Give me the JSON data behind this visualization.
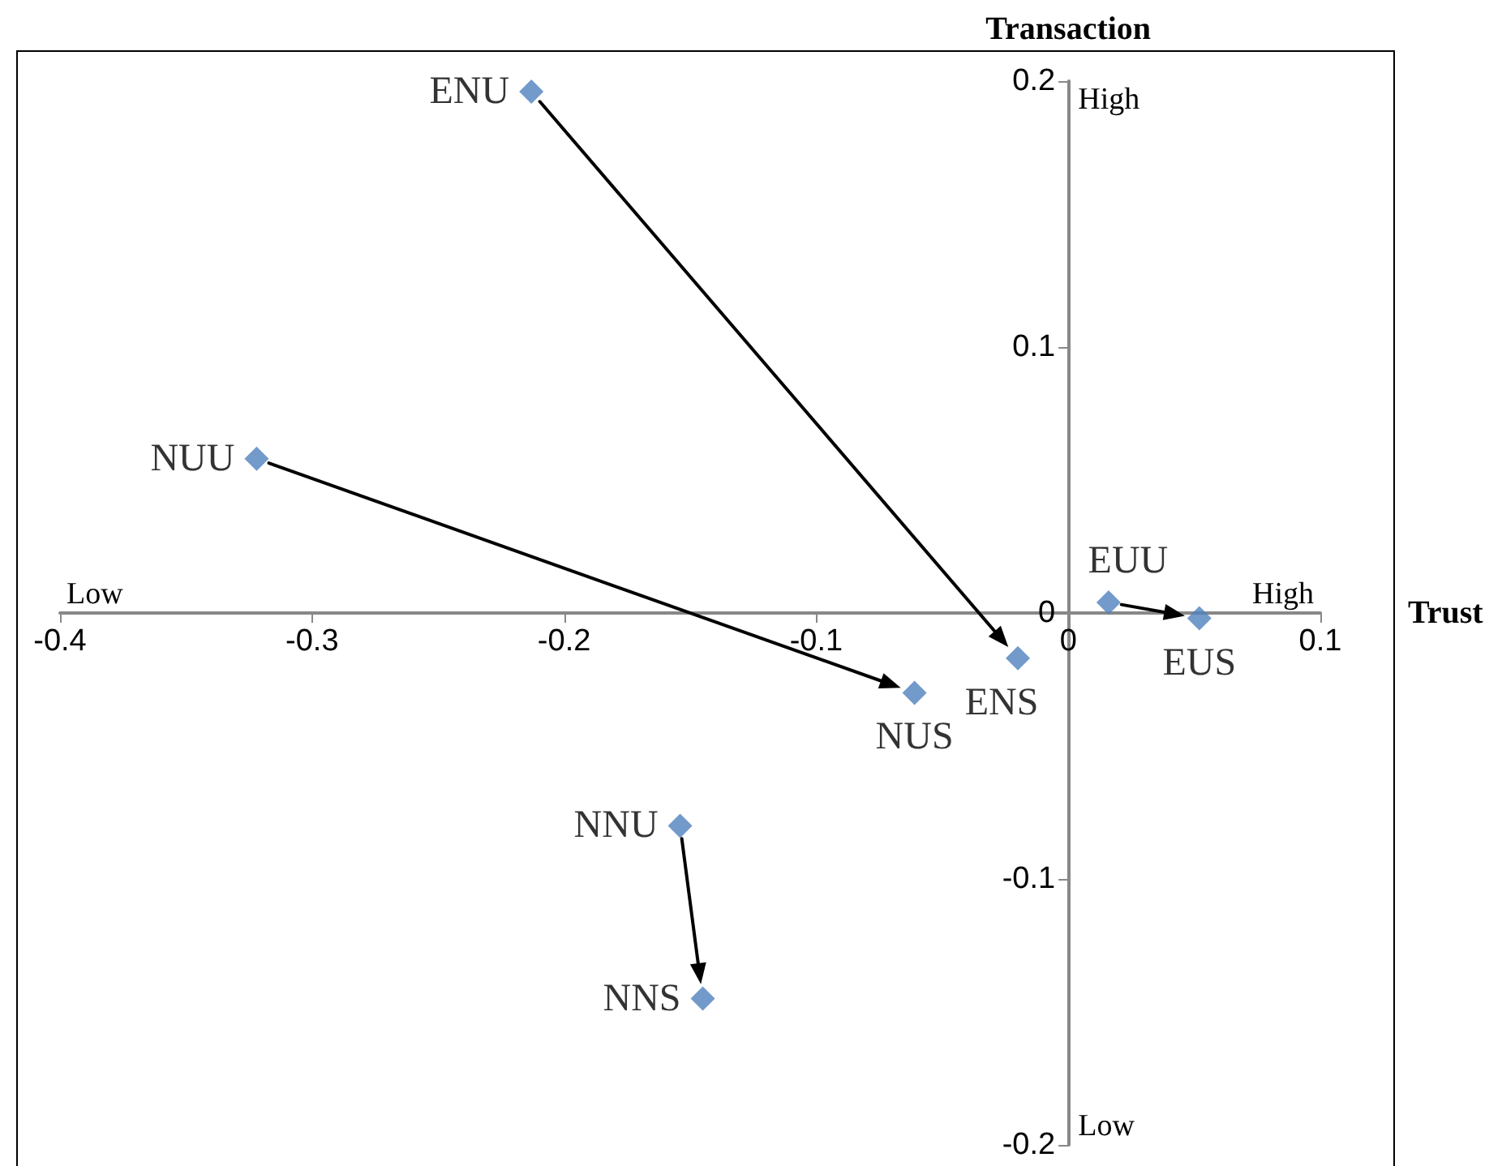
{
  "chart_data": {
    "type": "scatter",
    "xlabel": "Trust",
    "ylabel": "Transaction",
    "annotations": [
      "Low",
      "High",
      "High",
      "Low"
    ],
    "xlim": [
      -0.4,
      0.1
    ],
    "xticks": [
      -0.4,
      -0.3,
      -0.2,
      -0.1,
      0,
      0.1
    ],
    "ylim": [
      -0.2,
      0.2
    ],
    "yticks": [
      -0.2,
      -0.1,
      0,
      0.1,
      0.2
    ],
    "marker": "diamond",
    "series": [
      {
        "color": "#4f81bd",
        "x": [
          -0.213,
          -0.322,
          -0.061,
          -0.02,
          0.016,
          0.052,
          -0.154,
          -0.145
        ],
        "values": [
          0.196,
          0.058,
          -0.03,
          -0.017,
          0.004,
          -0.002,
          -0.08,
          -0.145
        ],
        "value_labels": [
          "ENU",
          "NUU",
          "NUS",
          "ENS",
          "EUU",
          "EUS",
          "NNU",
          "NNS"
        ]
      }
    ]
  }
}
